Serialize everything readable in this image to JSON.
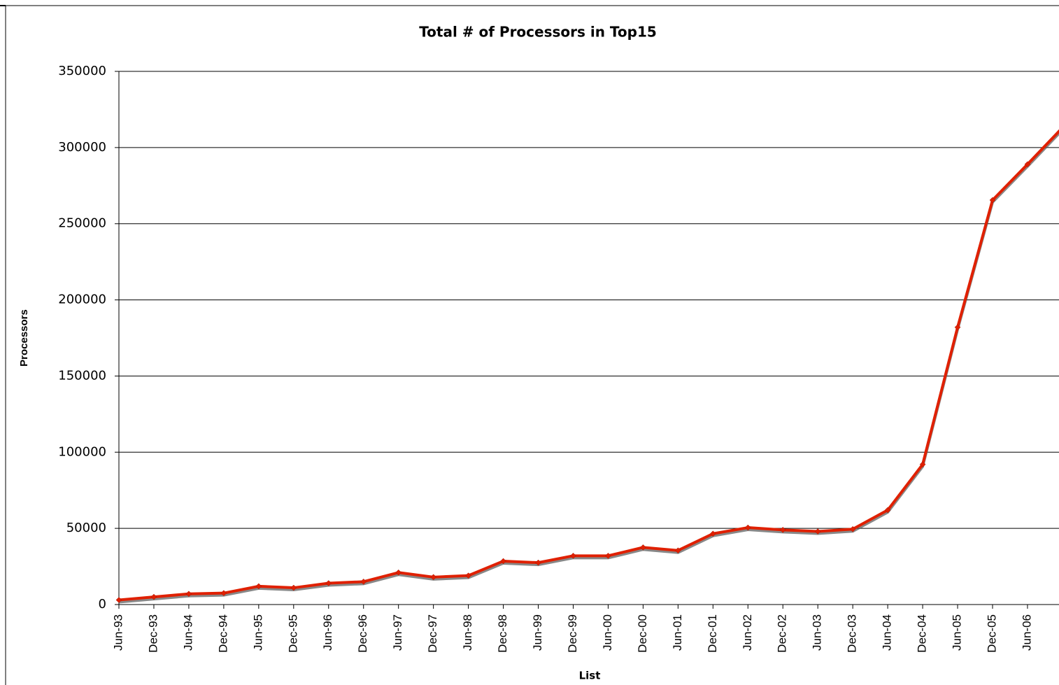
{
  "chart_data": {
    "type": "line",
    "title": "Total # of Processors in Top15",
    "x_label": "List",
    "y_label": "Processors",
    "categories": [
      "Jun-93",
      "Dec-93",
      "Jun-94",
      "Dec-94",
      "Jun-95",
      "Dec-95",
      "Jun-96",
      "Dec-96",
      "Jun-97",
      "Dec-97",
      "Jun-98",
      "Dec-98",
      "Jun-99",
      "Dec-99",
      "Jun-00",
      "Dec-00",
      "Jun-01",
      "Dec-01",
      "Jun-02",
      "Dec-02",
      "Jun-03",
      "Dec-03",
      "Jun-04",
      "Dec-04",
      "Jun-05",
      "Dec-05",
      "Jun-06",
      null
    ],
    "series": [
      {
        "name": "Processors",
        "color": "#e02000",
        "values": [
          3000,
          5000,
          7000,
          7500,
          12000,
          11000,
          14000,
          15000,
          21000,
          18000,
          19000,
          28500,
          27500,
          32000,
          32000,
          37500,
          35500,
          46500,
          50500,
          49000,
          48000,
          49500,
          62000,
          92000,
          182000,
          265500,
          289000,
          313000
        ]
      }
    ],
    "ylim": [
      0,
      350000
    ],
    "yticks": [
      0,
      50000,
      100000,
      150000,
      200000,
      250000,
      300000,
      350000
    ],
    "grid": true
  }
}
